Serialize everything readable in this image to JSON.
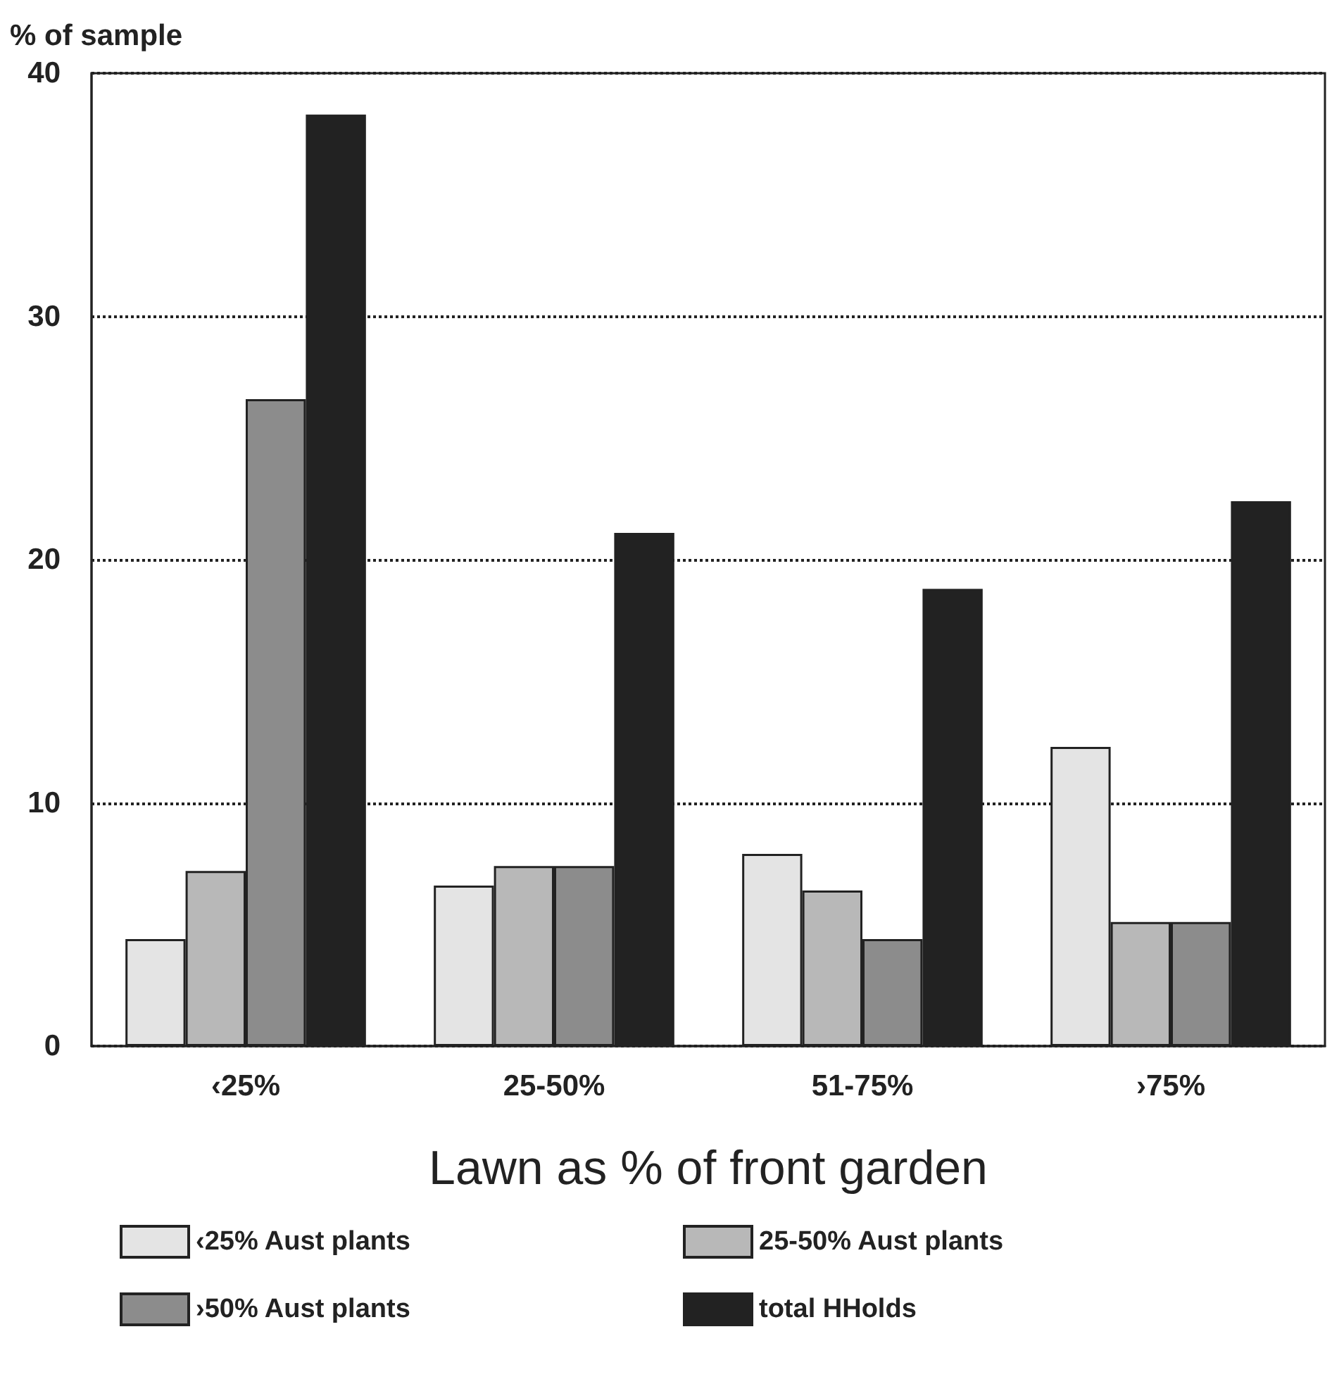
{
  "chart_data": {
    "type": "bar",
    "xlabel": "Lawn as % of front garden",
    "ylabel": "% of sample",
    "categories": [
      "‹25%",
      "25-50%",
      "51-75%",
      "›75%"
    ],
    "series": [
      {
        "name": "‹25% Aust plants",
        "color": "#e4e4e4",
        "values": [
          4.4,
          6.6,
          7.9,
          12.3
        ]
      },
      {
        "name": "25-50% Aust plants",
        "color": "#b8b8b8",
        "values": [
          7.2,
          7.4,
          6.4,
          5.1
        ]
      },
      {
        "name": "›50% Aust plants",
        "color": "#8c8c8c",
        "values": [
          26.6,
          7.4,
          4.4,
          5.1
        ]
      },
      {
        "name": "total HHolds",
        "color": "#222222",
        "values": [
          38.3,
          21.1,
          18.8,
          22.4
        ]
      }
    ],
    "ylim": [
      0,
      40
    ],
    "yticks": [
      0,
      10,
      20,
      30,
      40
    ],
    "grid": "y",
    "legend": "bottom"
  }
}
